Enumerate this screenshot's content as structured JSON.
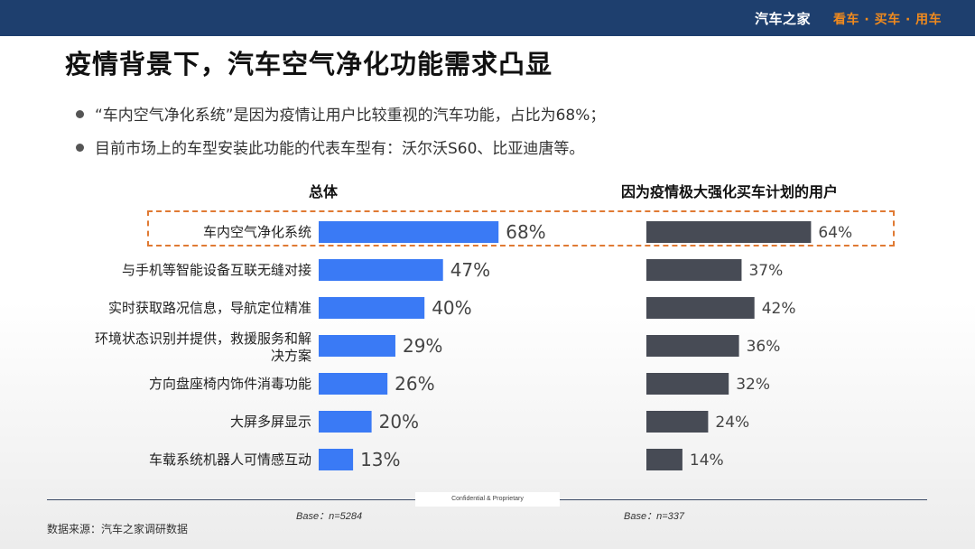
{
  "header": {
    "brand_name": "汽车之家",
    "slogan": "看车 · 买车 · 用车"
  },
  "title": "疫情背景下，汽车空气净化功能需求凸显",
  "bullets": [
    "“车内空气净化系统”是因为疫情让用户比较重视的汽车功能，占比为68%；",
    "目前市场上的车型安装此功能的代表车型有：沃尔沃S60、比亚迪唐等。"
  ],
  "chart_data": [
    {
      "type": "bar",
      "orientation": "horizontal",
      "title": "总体",
      "categories": [
        "车内空气净化系统",
        "与手机等智能设备互联无缝对接",
        "实时获取路况信息，导航定位精准",
        "环境状态识别并提供，救援服务和解决方案",
        "方向盘座椅内饰件消毒功能",
        "大屏多屏显示",
        "车载系统机器人可情感互动"
      ],
      "values": [
        68,
        47,
        40,
        29,
        26,
        20,
        13
      ],
      "value_labels": [
        "68%",
        "47%",
        "40%",
        "29%",
        "26%",
        "20%",
        "13%"
      ],
      "unit": "%",
      "color": "#3a7af5",
      "base": "Base：n=5284"
    },
    {
      "type": "bar",
      "orientation": "horizontal",
      "title": "因为疫情极大强化买车计划的用户",
      "categories": [
        "车内空气净化系统",
        "与手机等智能设备互联无缝对接",
        "实时获取路况信息，导航定位精准",
        "环境状态识别并提供，救援服务和解决方案",
        "方向盘座椅内饰件消毒功能",
        "大屏多屏显示",
        "车载系统机器人可情感互动"
      ],
      "values": [
        64,
        37,
        42,
        36,
        32,
        24,
        14
      ],
      "value_labels": [
        "64%",
        "37%",
        "42%",
        "36%",
        "32%",
        "24%",
        "14%"
      ],
      "unit": "%",
      "color": "#474b55",
      "base": "Base：n=337"
    }
  ],
  "category_display_lines": [
    [
      "车内空气净化系统"
    ],
    [
      "与手机等智能设备互联无缝对接"
    ],
    [
      "实时获取路况信息，导航定位精准"
    ],
    [
      "环境状态识别并提供，救援服务和解",
      "决方案"
    ],
    [
      "方向盘座椅内饰件消毒功能"
    ],
    [
      "大屏多屏显示"
    ],
    [
      "车载系统机器人可情感互动"
    ]
  ],
  "footer": {
    "confidential": "Confidential & Proprietary",
    "source": "数据来源：汽车之家调研数据"
  }
}
